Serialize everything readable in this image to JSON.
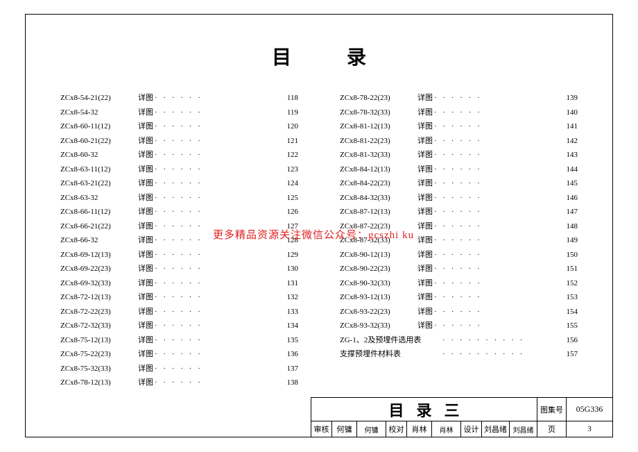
{
  "title": "目录",
  "watermark": "更多精品资源关注微信公众号：gcszhi ku",
  "dots": "· · · · · ·",
  "dots_long": "· · · · · · · · · ·",
  "left_col": [
    {
      "code": "ZCx8-54-21(22)",
      "label": "详图",
      "page": "118"
    },
    {
      "code": "ZCx8-54-32",
      "label": "详图",
      "page": "119"
    },
    {
      "code": "ZCx8-60-11(12)",
      "label": "详图",
      "page": "120"
    },
    {
      "code": "ZCx8-60-21(22)",
      "label": "详图",
      "page": "121"
    },
    {
      "code": "ZCx8-60-32",
      "label": "详图",
      "page": "122"
    },
    {
      "code": "ZCx8-63-11(12)",
      "label": "详图",
      "page": "123"
    },
    {
      "code": "ZCx8-63-21(22)",
      "label": "详图",
      "page": "124"
    },
    {
      "code": "ZCx8-63-32",
      "label": "详图",
      "page": "125"
    },
    {
      "code": "ZCx8-66-11(12)",
      "label": "详图",
      "page": "126"
    },
    {
      "code": "ZCx8-66-21(22)",
      "label": "详图",
      "page": "127"
    },
    {
      "code": "ZCx8-66-32",
      "label": "详图",
      "page": "128"
    },
    {
      "code": "ZCx8-69-12(13)",
      "label": "详图",
      "page": "129"
    },
    {
      "code": "ZCx8-69-22(23)",
      "label": "详图",
      "page": "130"
    },
    {
      "code": "ZCx8-69-32(33)",
      "label": "详图",
      "page": "131"
    },
    {
      "code": "ZCx8-72-12(13)",
      "label": "详图",
      "page": "132"
    },
    {
      "code": "ZCx8-72-22(23)",
      "label": "详图",
      "page": "133"
    },
    {
      "code": "ZCx8-72-32(33)",
      "label": "详图",
      "page": "134"
    },
    {
      "code": "ZCx8-75-12(13)",
      "label": "详图",
      "page": "135"
    },
    {
      "code": "ZCx8-75-22(23)",
      "label": "详图",
      "page": "136"
    },
    {
      "code": "ZCx8-75-32(33)",
      "label": "详图",
      "page": "137"
    },
    {
      "code": "ZCx8-78-12(13)",
      "label": "详图",
      "page": "138"
    }
  ],
  "right_col": [
    {
      "code": "ZCx8-78-22(23)",
      "label": "详图",
      "page": "139"
    },
    {
      "code": "ZCx8-78-32(33)",
      "label": "详图",
      "page": "140"
    },
    {
      "code": "ZCx8-81-12(13)",
      "label": "详图",
      "page": "141"
    },
    {
      "code": "ZCx8-81-22(23)",
      "label": "详图",
      "page": "142"
    },
    {
      "code": "ZCx8-81-32(33)",
      "label": "详图",
      "page": "143"
    },
    {
      "code": "ZCx8-84-12(13)",
      "label": "详图",
      "page": "144"
    },
    {
      "code": "ZCx8-84-22(23)",
      "label": "详图",
      "page": "145"
    },
    {
      "code": "ZCx8-84-32(33)",
      "label": "详图",
      "page": "146"
    },
    {
      "code": "ZCx8-87-12(13)",
      "label": "详图",
      "page": "147"
    },
    {
      "code": "ZCx8-87-22(23)",
      "label": "详图",
      "page": "148"
    },
    {
      "code": "ZCx8-87-32(33)",
      "label": "详图",
      "page": "149"
    },
    {
      "code": "ZCx8-90-12(13)",
      "label": "详图",
      "page": "150"
    },
    {
      "code": "ZCx8-90-22(23)",
      "label": "详图",
      "page": "151"
    },
    {
      "code": "ZCx8-90-32(33)",
      "label": "详图",
      "page": "152"
    },
    {
      "code": "ZCx8-93-12(13)",
      "label": "详图",
      "page": "153"
    },
    {
      "code": "ZCx8-93-22(23)",
      "label": "详图",
      "page": "154"
    },
    {
      "code": "ZCx8-93-32(33)",
      "label": "详图",
      "page": "155"
    },
    {
      "code": "ZG-1、2及预埋件选用表",
      "label": "",
      "page": "156",
      "wide": true
    },
    {
      "code": "支撑预埋件材料表",
      "label": "",
      "page": "157",
      "wide": true
    }
  ],
  "title_block": {
    "main": "目录三",
    "drawing_set_label": "图集号",
    "drawing_set_value": "05G336",
    "review_label": "审核",
    "review_name": "何镛",
    "review_sig": "何镛",
    "check_label": "校对",
    "check_name": "肖林",
    "check_sig": "肖林",
    "design_label": "设计",
    "design_name": "刘昌绪",
    "design_sig": "刘昌绪",
    "page_label": "页",
    "page_value": "3"
  }
}
